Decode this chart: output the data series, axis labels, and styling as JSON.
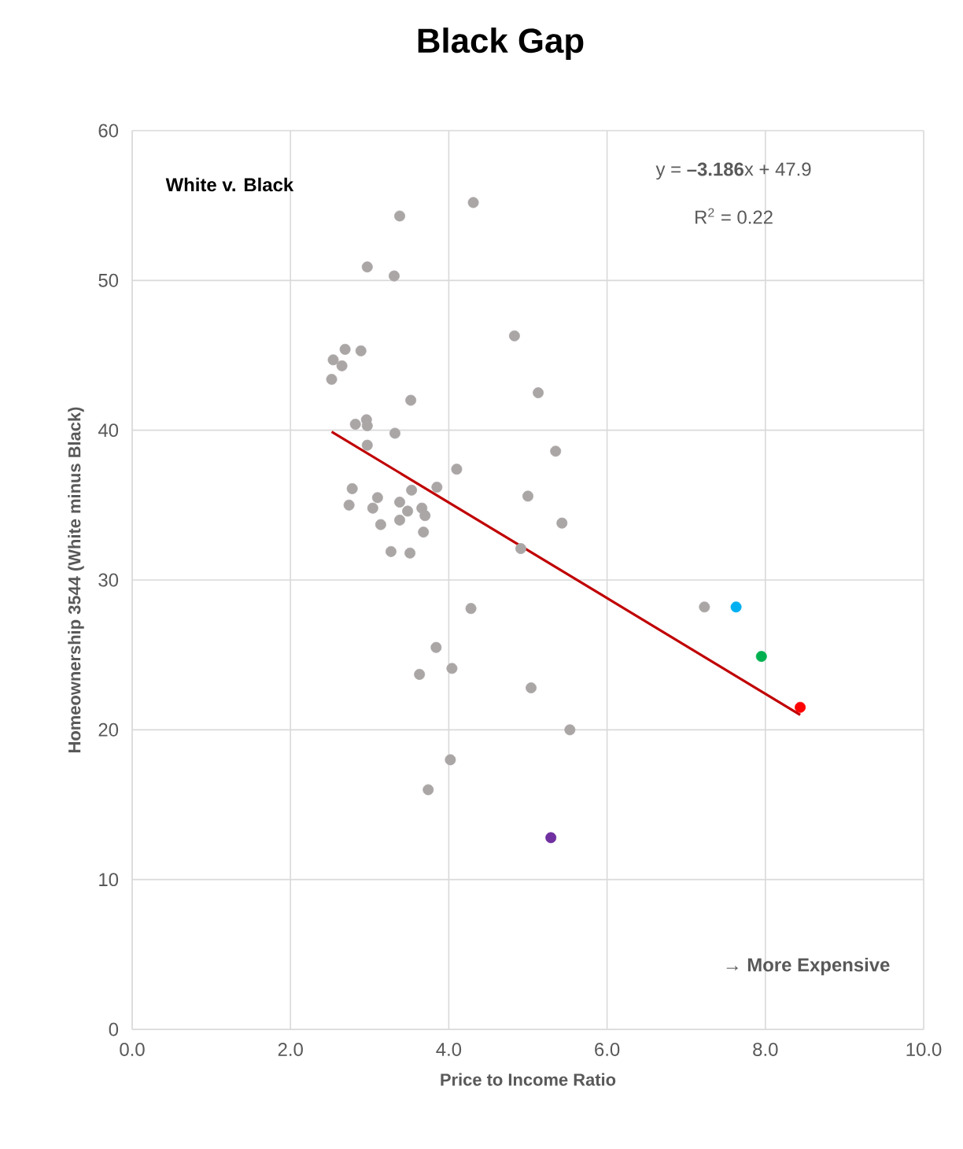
{
  "chart_data": {
    "type": "scatter",
    "title": "Black Gap",
    "xlabel": "Price to Income Ratio",
    "ylabel": "Homeownership 3544 (White minus Black)",
    "xlim": [
      0,
      10
    ],
    "xticks": [
      {
        "value": 0,
        "label": "0.0"
      },
      {
        "value": 2,
        "label": "2.0"
      },
      {
        "value": 4,
        "label": "4.0"
      },
      {
        "value": 6,
        "label": "6.0"
      },
      {
        "value": 8,
        "label": "8.0"
      },
      {
        "value": 10,
        "label": "10.0"
      }
    ],
    "ylim": [
      0,
      60
    ],
    "yticks": [
      0,
      10,
      20,
      30,
      40,
      50,
      60
    ],
    "grid": true,
    "marker": "circle",
    "annotations": [
      "White v. Black",
      "y = **–3.186**x + 47.9",
      "R$^{2}$ = 0.22",
      "→ More Expensive"
    ],
    "series": [
      {
        "color": "#aba6a6",
        "x": [
          4.31,
          4.83,
          5.13,
          5.35,
          4.1,
          5.0,
          5.43,
          4.91,
          4.28,
          7.23,
          4.04,
          5.04,
          5.53,
          4.02,
          3.38,
          2.97,
          3.31,
          2.69,
          2.89,
          2.54,
          2.65,
          2.52,
          3.52,
          2.82,
          2.96,
          2.97,
          3.32,
          2.97,
          3.85,
          2.78,
          2.74,
          3.1,
          3.04,
          3.53,
          3.38,
          3.48,
          3.66,
          3.7,
          3.38,
          3.14,
          3.68,
          3.27,
          3.51,
          3.84,
          3.63,
          3.74
        ],
        "values": [
          55.2,
          46.3,
          42.5,
          38.6,
          37.4,
          35.6,
          33.8,
          32.1,
          28.1,
          28.2,
          24.1,
          22.8,
          20.0,
          18.0,
          54.3,
          50.9,
          50.3,
          45.4,
          45.3,
          44.7,
          44.3,
          43.4,
          42.0,
          40.4,
          40.7,
          40.3,
          39.8,
          39.0,
          36.2,
          36.1,
          35.0,
          35.5,
          34.8,
          36.0,
          35.2,
          34.6,
          34.8,
          34.3,
          34.0,
          33.7,
          33.2,
          31.9,
          31.8,
          25.5,
          23.7,
          16.0
        ]
      },
      {
        "color": "#00b0f0",
        "x": [
          7.63
        ],
        "values": [
          28.2
        ]
      },
      {
        "color": "#00b050",
        "x": [
          7.95
        ],
        "values": [
          24.9
        ]
      },
      {
        "color": "#7030a0",
        "x": [
          5.29
        ],
        "values": [
          12.8
        ]
      },
      {
        "type": "line",
        "color": "#c00000",
        "x": [
          2.52,
          8.44
        ],
        "values": [
          39.9,
          21.0
        ],
        "marker": "none"
      },
      {
        "color": "#ff0000",
        "x": [
          8.44
        ],
        "values": [
          21.5
        ]
      }
    ]
  }
}
